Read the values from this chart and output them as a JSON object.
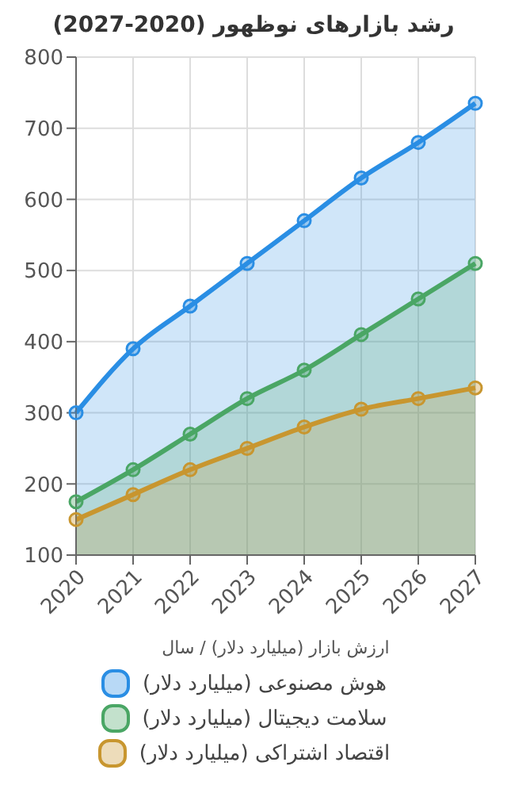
{
  "chart_data": {
    "type": "area",
    "title": "رشد بازارهای نوظهور (2020-2027)",
    "xlabel": "ارزش بازار (میلیارد دلار) / سال",
    "categories": [
      "2020",
      "2021",
      "2022",
      "2023",
      "2024",
      "2025",
      "2026",
      "2027"
    ],
    "series": [
      {
        "name": "هوش مصنوعی (میلیارد دلار)",
        "color": "#2a8ee4",
        "values": [
          300,
          390,
          450,
          510,
          570,
          630,
          680,
          735
        ]
      },
      {
        "name": "سلامت دیجیتال (میلیارد دلار)",
        "color": "#4aa665",
        "values": [
          175,
          220,
          270,
          320,
          360,
          410,
          460,
          510
        ]
      },
      {
        "name": "اقتصاد اشتراکی (میلیارد دلار)",
        "color": "#c8962f",
        "values": [
          150,
          185,
          220,
          250,
          280,
          305,
          320,
          335
        ]
      }
    ],
    "ylim": [
      100,
      800
    ],
    "yticks": [
      100,
      200,
      300,
      400,
      500,
      600,
      700,
      800
    ],
    "grid": true,
    "legend": "bottom",
    "marker": "circle",
    "line_style": "solid"
  }
}
